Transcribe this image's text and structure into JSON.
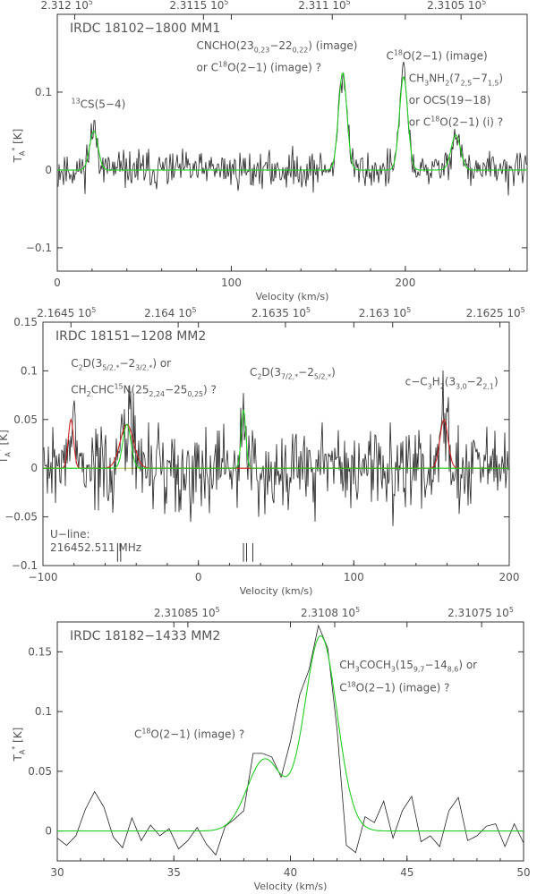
{
  "chart_data": [
    {
      "type": "line",
      "title": "IRDC 18102−1800 MM1",
      "xlabel": "Velocity (km/s)",
      "ylabel": "T",
      "ylabel_sub": "A",
      "ylabel_sup": "*",
      "ylabel_unit": " [K]",
      "xlim": [
        0,
        270
      ],
      "ylim": [
        -0.13,
        0.2
      ],
      "x_ticks": [
        0,
        100,
        200
      ],
      "y_ticks": [
        -0.1,
        0,
        0.1
      ],
      "y_tick_labels": [
        "−0.1",
        "0",
        "0.1"
      ],
      "top_axis": {
        "ticks": [
          {
            "x": 10,
            "label": "2.312 10"
          },
          {
            "x": 84,
            "label": "2.3115 10"
          },
          {
            "x": 158,
            "label": "2.311 10"
          },
          {
            "x": 232,
            "label": "2.3105 10"
          }
        ],
        "exponent": "5"
      },
      "noise": 0.012,
      "series": [
        {
          "name": "",
          "color": "#22cc22",
          "peaks": [
            {
              "center": 21,
              "amp": 0.05,
              "width": 2.4
            },
            {
              "center": 164,
              "amp": 0.125,
              "width": 2.4
            },
            {
              "center": 199,
              "amp": 0.12,
              "width": 2.4
            },
            {
              "center": 229,
              "amp": 0.045,
              "width": 2.7
            }
          ]
        }
      ],
      "annotations": [
        {
          "x": 8,
          "y": 0.08,
          "parts": [
            [
              "sup",
              "13"
            ],
            [
              "n",
              "CS(5−4)"
            ]
          ]
        },
        {
          "x": 80,
          "y": 0.155,
          "parts": [
            [
              "n",
              "CNCHO(23"
            ],
            [
              "sub",
              "0,23"
            ],
            [
              "n",
              "−22"
            ],
            [
              "sub",
              "0,22"
            ],
            [
              "n",
              ") (image)"
            ]
          ]
        },
        {
          "x": 80,
          "y": 0.127,
          "parts": [
            [
              "n",
              "or C"
            ],
            [
              "sup",
              "18"
            ],
            [
              "n",
              "O(2−1) (image) ?"
            ]
          ]
        },
        {
          "x": 189,
          "y": 0.142,
          "parts": [
            [
              "n",
              "C"
            ],
            [
              "sup",
              "18"
            ],
            [
              "n",
              "O(2−1) (image)"
            ]
          ]
        },
        {
          "x": 202,
          "y": 0.113,
          "parts": [
            [
              "n",
              "CH"
            ],
            [
              "sub",
              "3"
            ],
            [
              "n",
              "NH"
            ],
            [
              "sub",
              "2"
            ],
            [
              "n",
              "(7"
            ],
            [
              "sub",
              "2,5"
            ],
            [
              "n",
              "−7"
            ],
            [
              "sub",
              "1,5"
            ],
            [
              "n",
              ")"
            ]
          ]
        },
        {
          "x": 202,
          "y": 0.085,
          "parts": [
            [
              "n",
              "or OCS(19−18)"
            ]
          ]
        },
        {
          "x": 202,
          "y": 0.057,
          "parts": [
            [
              "n",
              "or C"
            ],
            [
              "sup",
              "18"
            ],
            [
              "n",
              "O(2−1) (i) ?"
            ]
          ]
        }
      ]
    },
    {
      "type": "line",
      "title": "IRDC 18151−1208 MM2",
      "xlabel": "Velocity (km/s)",
      "ylabel": "T",
      "ylabel_sub": "A",
      "ylabel_sup": "*",
      "ylabel_unit": " [K]",
      "xlim": [
        -100,
        200
      ],
      "ylim": [
        -0.1,
        0.15
      ],
      "x_ticks": [
        -100,
        0,
        100,
        200
      ],
      "x_tick_labels": [
        "−100",
        "0",
        "100",
        "200"
      ],
      "y_ticks": [
        -0.1,
        -0.05,
        0,
        0.05,
        0.1,
        0.15
      ],
      "y_tick_labels": [
        "−0.1",
        "−0.05",
        "0",
        "0.05",
        "0.1",
        "0.15"
      ],
      "top_axis": {
        "ticks": [
          {
            "x": -82,
            "label": "2.1645 10"
          },
          {
            "x": -13,
            "label": "2.164 10"
          },
          {
            "x": 56,
            "label": "2.1635 10"
          },
          {
            "x": 125,
            "label": "2.163 10"
          },
          {
            "x": 194,
            "label": "2.1625 10"
          }
        ],
        "exponent": "5"
      },
      "noise": 0.022,
      "series": [
        {
          "name": "",
          "color": "#cc2222",
          "peaks": [
            {
              "center": -82,
              "amp": 0.05,
              "width": 1.7
            },
            {
              "center": -46,
              "amp": 0.045,
              "width": 4.3
            },
            {
              "center": 158,
              "amp": 0.05,
              "width": 2.6
            }
          ]
        },
        {
          "name": "",
          "color": "#22cc22",
          "peaks": [
            {
              "center": -46,
              "amp": 0.045,
              "width": 2.6
            },
            {
              "center": 29,
              "amp": 0.06,
              "width": 1.5
            }
          ]
        }
      ],
      "u_line": {
        "label1": "U−line:",
        "label2": "216452.511 MHz",
        "marks": [
          -52,
          -50,
          29,
          31,
          35
        ]
      },
      "annotations": [
        {
          "x": -82,
          "y": 0.104,
          "parts": [
            [
              "n",
              "C"
            ],
            [
              "sub",
              "2"
            ],
            [
              "n",
              "D(3"
            ],
            [
              "sub",
              "5/2,*"
            ],
            [
              "n",
              "−2"
            ],
            [
              "sub",
              "3/2,*"
            ],
            [
              "n",
              ") or"
            ]
          ]
        },
        {
          "x": -82,
          "y": 0.077,
          "parts": [
            [
              "n",
              "CH"
            ],
            [
              "sub",
              "2"
            ],
            [
              "n",
              "CHC"
            ],
            [
              "sup",
              "15"
            ],
            [
              "n",
              "N(25"
            ],
            [
              "sub",
              "2,24"
            ],
            [
              "n",
              "−25"
            ],
            [
              "sub",
              "0,25"
            ],
            [
              "n",
              ") ?"
            ]
          ]
        },
        {
          "x": 33,
          "y": 0.095,
          "parts": [
            [
              "n",
              "C"
            ],
            [
              "sub",
              "2"
            ],
            [
              "n",
              "D(3"
            ],
            [
              "sub",
              "7/2,*"
            ],
            [
              "n",
              "−2"
            ],
            [
              "sub",
              "5/2,*"
            ],
            [
              "n",
              ")"
            ]
          ]
        },
        {
          "x": 133,
          "y": 0.085,
          "parts": [
            [
              "n",
              "c−C"
            ],
            [
              "sub",
              "3"
            ],
            [
              "n",
              "H"
            ],
            [
              "sub",
              "2"
            ],
            [
              "n",
              "(3"
            ],
            [
              "sub",
              "3,0"
            ],
            [
              "n",
              "−2"
            ],
            [
              "sub",
              "2,1"
            ],
            [
              "n",
              ")"
            ]
          ]
        }
      ]
    },
    {
      "type": "line",
      "title": "IRDC 18182−1433 MM2",
      "xlabel": "Velocity (km/s)",
      "ylabel": "T",
      "ylabel_sub": "A",
      "ylabel_sup": "*",
      "ylabel_unit": " [K]",
      "xlim": [
        30,
        50
      ],
      "ylim": [
        -0.025,
        0.175
      ],
      "x_ticks": [
        30,
        35,
        40,
        45,
        50
      ],
      "y_ticks": [
        0,
        0.05,
        0.1,
        0.15
      ],
      "y_tick_labels": [
        "0",
        "0.05",
        "0.1",
        "0.15"
      ],
      "top_axis": {
        "ticks": [
          {
            "x": 35.6,
            "label": "2.31085 10"
          },
          {
            "x": 41.9,
            "label": "2.3108 10"
          },
          {
            "x": 48.2,
            "label": "2.31075 10"
          }
        ],
        "exponent": "5"
      },
      "data_x": [
        30,
        30.4,
        30.8,
        31.2,
        31.6,
        32,
        32.4,
        32.8,
        33.2,
        33.6,
        34,
        34.4,
        34.8,
        35.2,
        35.6,
        36,
        36.4,
        36.8,
        37.2,
        37.6,
        38,
        38.4,
        38.8,
        39.2,
        39.6,
        40,
        40.4,
        40.8,
        41.2,
        41.6,
        42,
        42.4,
        42.8,
        43.2,
        43.6,
        44,
        44.4,
        44.8,
        45.2,
        45.6,
        46,
        46.4,
        46.8,
        47.2,
        47.6,
        48,
        48.4,
        48.8,
        49.2,
        49.6,
        50
      ],
      "data_y": [
        -0.006,
        -0.012,
        -0.004,
        0.018,
        0.033,
        0.02,
        -0.005,
        -0.014,
        0.011,
        -0.008,
        0.005,
        -0.004,
        0.002,
        -0.015,
        -0.008,
        0.003,
        -0.011,
        -0.02,
        0.004,
        0.01,
        0.017,
        0.065,
        0.065,
        0.062,
        0.045,
        0.075,
        0.114,
        0.135,
        0.172,
        0.153,
        0.085,
        -0.012,
        -0.018,
        0.012,
        0.007,
        0.025,
        -0.006,
        0.017,
        0.029,
        -0.009,
        -0.004,
        -0.013,
        0.017,
        0.028,
        -0.008,
        -0.004,
        0.004,
        0.006,
        -0.013,
        0.006,
        -0.01
      ],
      "series": [
        {
          "name": "",
          "color": "#22cc22",
          "peaks": [
            {
              "center": 38.9,
              "amp": 0.06,
              "width": 0.75
            },
            {
              "center": 41.3,
              "amp": 0.163,
              "width": 0.7
            }
          ]
        }
      ],
      "annotations": [
        {
          "x": 33.3,
          "y": 0.078,
          "parts": [
            [
              "n",
              "C"
            ],
            [
              "sup",
              "18"
            ],
            [
              "n",
              "O(2−1) (image) ?"
            ]
          ]
        },
        {
          "x": 42.1,
          "y": 0.136,
          "parts": [
            [
              "n",
              "CH"
            ],
            [
              "sub",
              "3"
            ],
            [
              "n",
              "COCH"
            ],
            [
              "sub",
              "3"
            ],
            [
              "n",
              "(15"
            ],
            [
              "sub",
              "9,7"
            ],
            [
              "n",
              "−14"
            ],
            [
              "sub",
              "8,6"
            ],
            [
              "n",
              ") or"
            ]
          ]
        },
        {
          "x": 42.1,
          "y": 0.117,
          "parts": [
            [
              "n",
              "C"
            ],
            [
              "sup",
              "18"
            ],
            [
              "n",
              "O(2−1) (image) ?"
            ]
          ]
        }
      ]
    }
  ]
}
